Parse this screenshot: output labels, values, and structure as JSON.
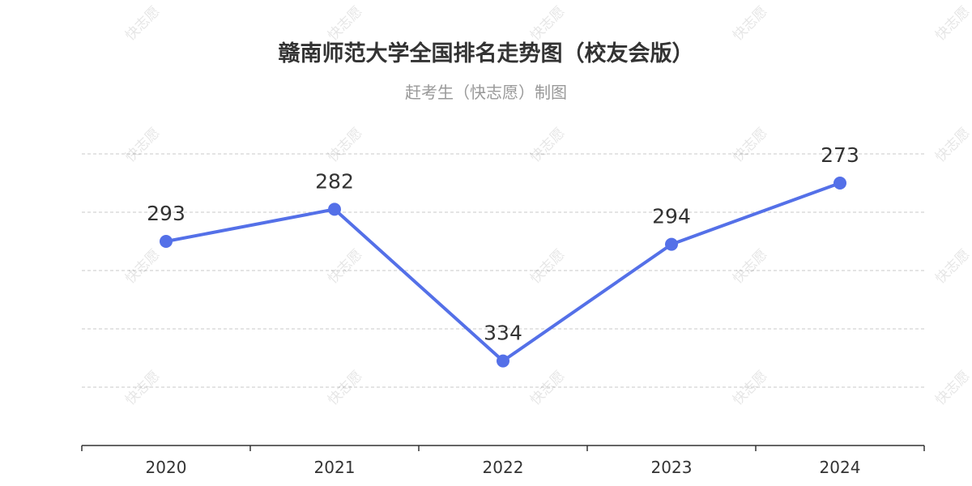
{
  "chart": {
    "title": "赣南师范大学全国排名走势图（校友会版）",
    "subtitle": "赶考生（快志愿）制图",
    "watermark": "快志愿"
  },
  "chart_data": {
    "type": "line",
    "categories": [
      "2020",
      "2021",
      "2022",
      "2023",
      "2024"
    ],
    "series": [
      {
        "values": [
          293,
          282,
          334,
          294,
          273
        ]
      }
    ],
    "y_inverted": true,
    "ylim": [
      263,
      363
    ],
    "grid": true,
    "color": "#5470e8",
    "data_labels": [
      "293",
      "282",
      "334",
      "294",
      "273"
    ]
  }
}
